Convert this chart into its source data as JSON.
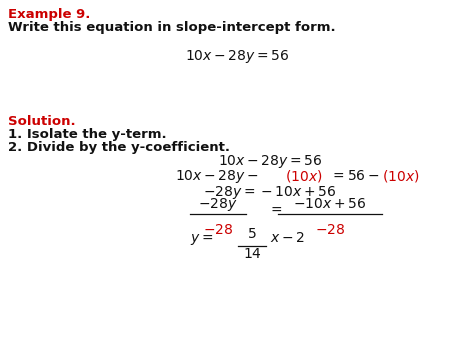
{
  "bg_color": "#ffffff",
  "red_color": "#cc0000",
  "black_color": "#111111",
  "fig_width": 4.74,
  "fig_height": 3.55,
  "dpi": 100,
  "texts": {
    "example": "Example 9.",
    "subtitle": "Write this equation in slope-intercept form.",
    "solution": "Solution.",
    "step1": "1. Isolate the y-term.",
    "step2": "2. Divide by the y-coefficient."
  }
}
